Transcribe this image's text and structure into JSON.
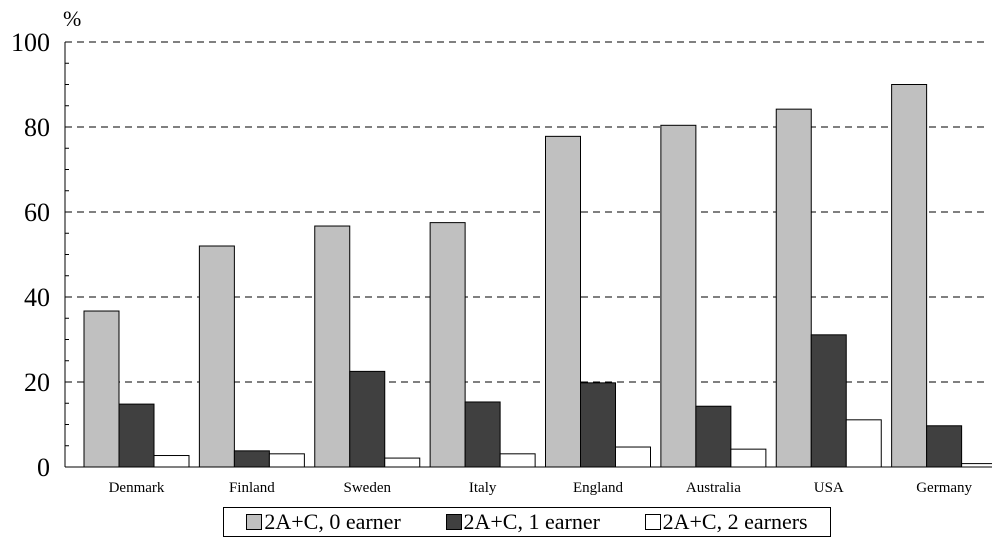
{
  "chart_data": {
    "type": "bar",
    "ylabel": "%",
    "ylim": [
      0,
      100
    ],
    "yticks": [
      0,
      20,
      40,
      60,
      80,
      100
    ],
    "grid": "horizontal-dashed",
    "legend_position": "bottom",
    "categories": [
      "Denmark",
      "Finland",
      "Sweden",
      "Italy",
      "England",
      "Australia",
      "USA",
      "Germany"
    ],
    "series": [
      {
        "name": "2A+C, 0 earner",
        "color": "#c0c0c0",
        "values": [
          36.7,
          52,
          56.7,
          57.5,
          77.8,
          80.4,
          84.2,
          90
        ]
      },
      {
        "name": "2A+C, 1 earner",
        "color": "#404040",
        "values": [
          14.8,
          3.8,
          22.5,
          15.3,
          19.8,
          14.3,
          31.1,
          9.7
        ]
      },
      {
        "name": "2A+C, 2 earners",
        "color": "#ffffff",
        "values": [
          2.7,
          3.1,
          2.1,
          3.1,
          4.7,
          4.2,
          11.1,
          0.8
        ]
      }
    ]
  }
}
